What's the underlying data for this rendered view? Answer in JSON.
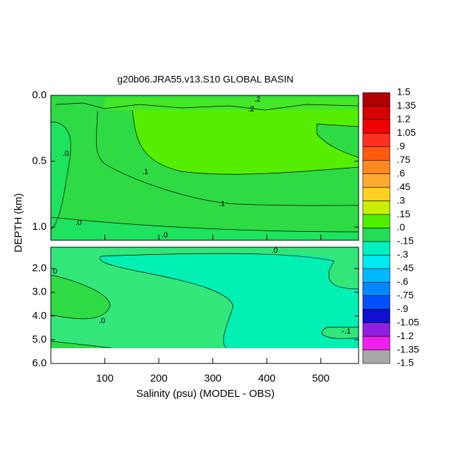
{
  "chart_data": {
    "type": "contour",
    "title": "g20b06.JRA55.v13.S10 GLOBAL BASIN",
    "xlabel": "Salinity (psu) (MODEL - OBS)",
    "ylabel": "DEPTH (km)",
    "xlim": [
      0,
      570
    ],
    "xticks": [
      100,
      200,
      300,
      400,
      500
    ],
    "panels": [
      {
        "ylim": [
          0,
          1.1
        ],
        "yticks": [
          {
            "value": 0,
            "label": "0.0"
          },
          0.5,
          {
            "value": 1,
            "label": "1.0"
          }
        ]
      },
      {
        "ylim": [
          1.1,
          6.0
        ],
        "yticks": [
          {
            "value": 2,
            "label": "2.0"
          },
          {
            "value": 3,
            "label": "3.0"
          },
          {
            "value": 4,
            "label": "4.0"
          },
          {
            "value": 5,
            "label": "5.0"
          },
          {
            "value": 6,
            "label": "6.0"
          }
        ]
      }
    ],
    "colorbar": {
      "levels": [
        1.5,
        1.35,
        1.2,
        1.05,
        {
          "value": 0.9,
          "label": ".9"
        },
        {
          "value": 0.75,
          "label": ".75"
        },
        {
          "value": 0.6,
          "label": ".6"
        },
        {
          "value": 0.45,
          "label": ".45"
        },
        {
          "value": 0.3,
          "label": ".3"
        },
        {
          "value": 0.15,
          "label": ".15"
        },
        {
          "value": 0,
          "label": ".0"
        },
        {
          "value": -0.15,
          "label": "-.15"
        },
        {
          "value": -0.3,
          "label": "-.3"
        },
        {
          "value": -0.45,
          "label": "-.45"
        },
        {
          "value": -0.6,
          "label": "-.6"
        },
        {
          "value": -0.75,
          "label": "-.75"
        },
        {
          "value": -0.9,
          "label": "-.9"
        },
        -1.05,
        -1.2,
        -1.35,
        -1.5
      ],
      "colors": [
        "#b00000",
        "#d80000",
        "#f00000",
        "#ff3020",
        "#ff5a10",
        "#ff8a20",
        "#ffaa30",
        "#ffd020",
        "#c8f000",
        "#50ee00",
        "#22dd55",
        "#00f0c0",
        "#00e8f0",
        "#00b8ff",
        "#0088ff",
        "#0050ff",
        "#1010d0",
        "#9020e0",
        "#ee20ee",
        "#a8a8a8"
      ]
    },
    "contour_labels": [
      ".2",
      ".2",
      ".0",
      ".1",
      ".1",
      ".0",
      ".0",
      ".0",
      ".0",
      "-.1",
      "0"
    ]
  }
}
